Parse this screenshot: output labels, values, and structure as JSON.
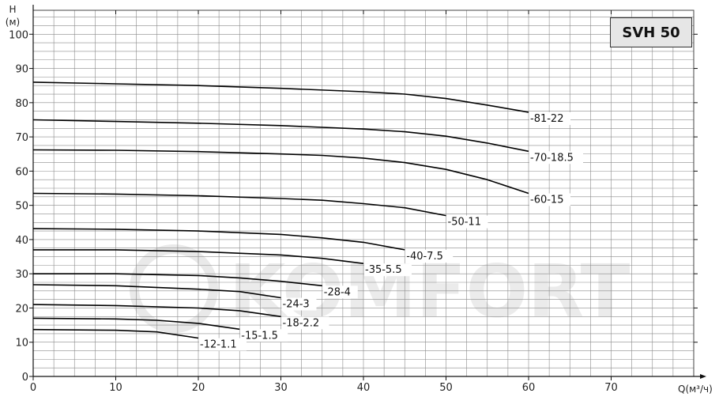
{
  "chart_data": {
    "type": "line",
    "title": "SVH 50",
    "ylabel_top": "H",
    "ylabel_unit": "(м)",
    "xlabel": "Q(м³/ч)",
    "watermark": "KOMFORT",
    "xlim": [
      0,
      80
    ],
    "ylim": [
      0,
      107
    ],
    "x_ticks": [
      "0",
      "10",
      "20",
      "30",
      "40",
      "50",
      "60",
      "70"
    ],
    "y_ticks": [
      "0",
      "10",
      "20",
      "30",
      "40",
      "50",
      "60",
      "70",
      "80",
      "90",
      "100"
    ],
    "grid": true,
    "series": [
      {
        "name": "-81-22",
        "x": [
          0,
          10,
          20,
          30,
          40,
          45,
          50,
          55,
          60
        ],
        "y": [
          86,
          85.5,
          85,
          84.2,
          83.2,
          82.5,
          81.2,
          79.3,
          77.2
        ]
      },
      {
        "name": "-70-18.5",
        "x": [
          0,
          10,
          20,
          30,
          40,
          45,
          50,
          55,
          60
        ],
        "y": [
          75,
          74.5,
          74,
          73.3,
          72.3,
          71.5,
          70.2,
          68.2,
          65.8
        ]
      },
      {
        "name": "-60-15",
        "x": [
          0,
          10,
          20,
          30,
          35,
          40,
          45,
          50,
          55,
          60
        ],
        "y": [
          66.2,
          66.1,
          65.7,
          65,
          64.6,
          63.8,
          62.5,
          60.5,
          57.5,
          53.5
        ]
      },
      {
        "name": "-50-11",
        "x": [
          0,
          10,
          20,
          30,
          35,
          40,
          45,
          50
        ],
        "y": [
          53.5,
          53.3,
          52.8,
          52,
          51.5,
          50.5,
          49.3,
          47
        ]
      },
      {
        "name": "-40-7.5",
        "x": [
          0,
          10,
          20,
          30,
          35,
          40,
          45
        ],
        "y": [
          43.2,
          43,
          42.5,
          41.5,
          40.5,
          39.2,
          37
        ]
      },
      {
        "name": "-35-5.5",
        "x": [
          0,
          10,
          20,
          30,
          35,
          40
        ],
        "y": [
          37,
          37,
          36.5,
          35.5,
          34.5,
          33
        ]
      },
      {
        "name": "-28-4",
        "x": [
          0,
          10,
          20,
          25,
          30,
          35
        ],
        "y": [
          30,
          30,
          29.5,
          28.8,
          27.8,
          26.5
        ]
      },
      {
        "name": "-24-3",
        "x": [
          0,
          10,
          20,
          25,
          30
        ],
        "y": [
          26.8,
          26.5,
          25.5,
          24.8,
          23
        ]
      },
      {
        "name": "-18-2.2",
        "x": [
          0,
          10,
          20,
          25,
          30
        ],
        "y": [
          21,
          20.7,
          20,
          19.2,
          17.5
        ]
      },
      {
        "name": "-15-1.5",
        "x": [
          0,
          10,
          15,
          20,
          25
        ],
        "y": [
          17,
          16.8,
          16.4,
          15.5,
          13.8
        ]
      },
      {
        "name": "-12-1.1",
        "x": [
          0,
          10,
          15,
          20
        ],
        "y": [
          13.7,
          13.5,
          13,
          11.2
        ]
      }
    ]
  }
}
